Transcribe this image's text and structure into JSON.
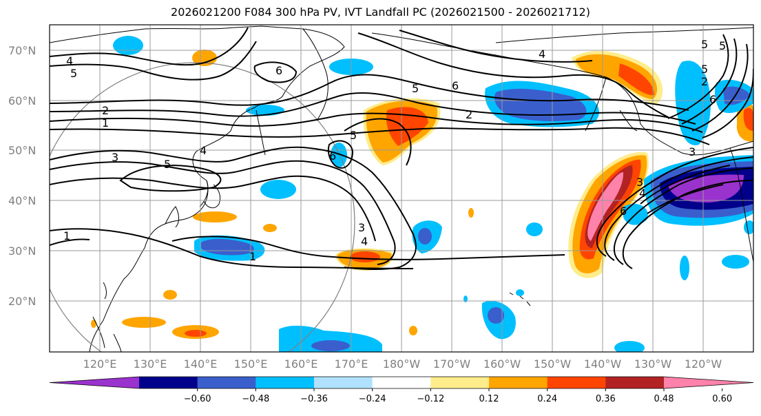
{
  "title": "2026021200 F084 300 hPa PV, IVT Landfall PC (2026021500 - 2026021712)",
  "lat_labels": [
    "70°N",
    "60°N",
    "50°N",
    "40°N",
    "30°N",
    "20°N"
  ],
  "lon_labels": [
    "120°E",
    "130°E",
    "140°E",
    "150°E",
    "160°E",
    "170°E",
    "180°W",
    "170°W",
    "160°W",
    "150°W",
    "140°W",
    "130°W",
    "120°W"
  ],
  "colorbar": {
    "ticks": [
      "−0.60",
      "−0.48",
      "−0.36",
      "−0.24",
      "−0.12",
      "0.12",
      "0.24",
      "0.36",
      "0.48",
      "0.60"
    ],
    "colors": [
      "#9a32cd",
      "#00008b",
      "#3a5fcd",
      "#00bfff",
      "#b0e2ff",
      "#ffffff",
      "#ffec8b",
      "#ffa500",
      "#ff4500",
      "#b22222",
      "#ff82ab"
    ]
  },
  "contour_labels": [
    "4",
    "5",
    "6",
    "5",
    "6",
    "4",
    "5",
    "2",
    "1",
    "3",
    "4",
    "5",
    "5",
    "6",
    "2",
    "5",
    "3",
    "6",
    "3",
    "4",
    "1",
    "1",
    "6",
    "4",
    "3",
    "2",
    "5"
  ],
  "colors": {
    "grid": "#9a9a9a",
    "circle": "#808080",
    "contour": "#000000"
  }
}
